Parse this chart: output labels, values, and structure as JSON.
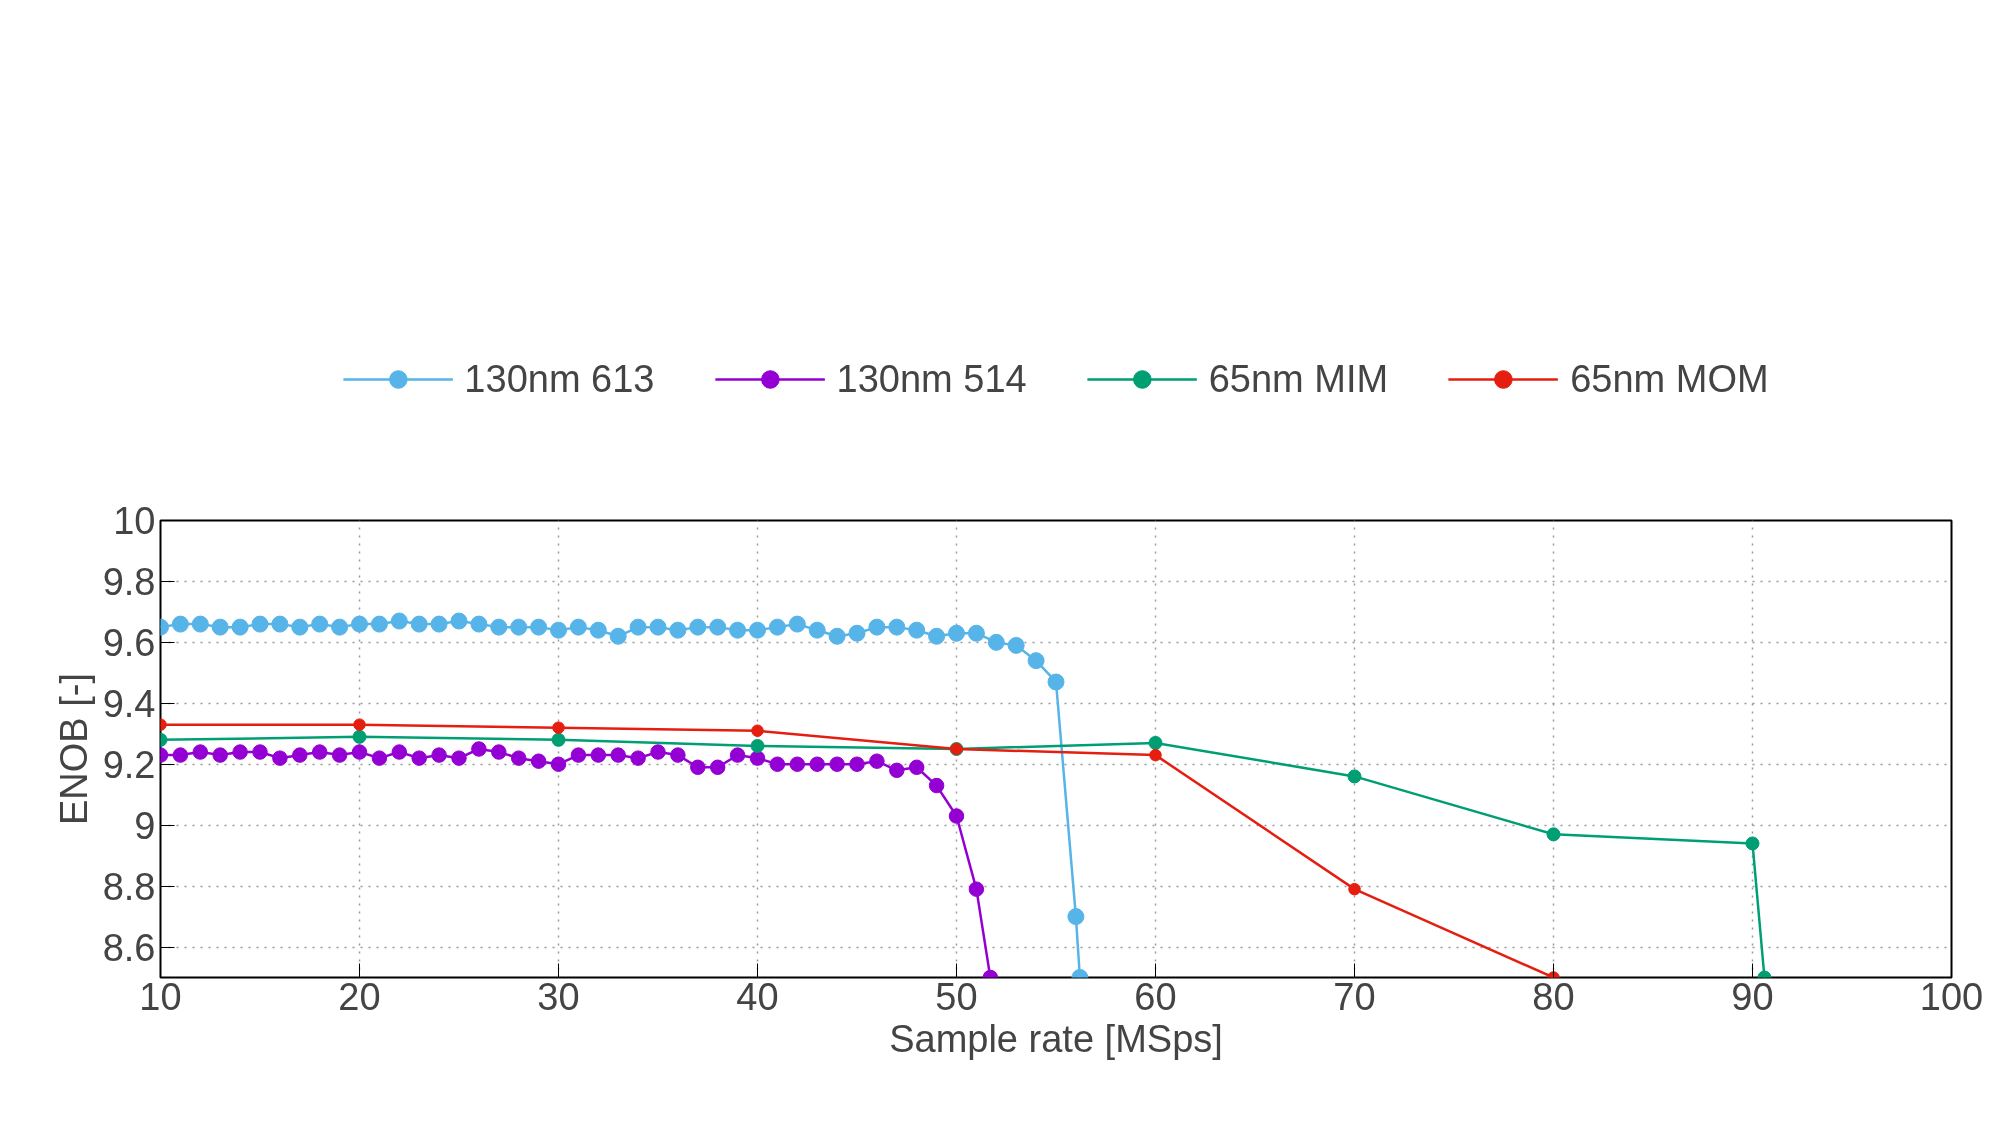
{
  "chart_data": {
    "type": "line",
    "xlabel": "Sample rate [MSps]",
    "ylabel": "ENOB [-]",
    "xlim": [
      10,
      100
    ],
    "xticks": [
      10,
      20,
      30,
      40,
      50,
      60,
      70,
      80,
      90,
      100
    ],
    "ylim": [
      8.5,
      10
    ],
    "yticks": [
      8.6,
      8.8,
      9,
      9.2,
      9.4,
      9.6,
      9.8,
      10
    ],
    "grid": true,
    "legend": "top",
    "marker": "circle",
    "line_style": "solid",
    "series": [
      {
        "name": "130nm 613",
        "color": "#56b4e9",
        "x": [
          10,
          11,
          12,
          13,
          14,
          15,
          16,
          17,
          18,
          19,
          20,
          21,
          22,
          23,
          24,
          25,
          26,
          27,
          28,
          29,
          30,
          31,
          32,
          33,
          34,
          35,
          36,
          37,
          38,
          39,
          40,
          41,
          42,
          43,
          44,
          45,
          46,
          47,
          48,
          49,
          50,
          51,
          52,
          53,
          54,
          55,
          56,
          56.2
        ],
        "values": [
          9.65,
          9.66,
          9.66,
          9.65,
          9.65,
          9.66,
          9.66,
          9.65,
          9.66,
          9.65,
          9.66,
          9.66,
          9.67,
          9.66,
          9.66,
          9.67,
          9.66,
          9.65,
          9.65,
          9.65,
          9.64,
          9.65,
          9.64,
          9.62,
          9.65,
          9.65,
          9.64,
          9.65,
          9.65,
          9.64,
          9.64,
          9.65,
          9.66,
          9.64,
          9.62,
          9.63,
          9.65,
          9.65,
          9.64,
          9.62,
          9.63,
          9.63,
          9.6,
          9.59,
          9.54,
          9.47,
          8.7,
          8.5
        ]
      },
      {
        "name": "130nm 514",
        "color": "#9400d3",
        "x": [
          10,
          11,
          12,
          13,
          14,
          15,
          16,
          17,
          18,
          19,
          20,
          21,
          22,
          23,
          24,
          25,
          26,
          27,
          28,
          29,
          30,
          31,
          32,
          33,
          34,
          35,
          36,
          37,
          38,
          39,
          40,
          41,
          42,
          43,
          44,
          45,
          46,
          47,
          48,
          49,
          50,
          51,
          51.7
        ],
        "values": [
          9.23,
          9.23,
          9.24,
          9.23,
          9.24,
          9.24,
          9.22,
          9.23,
          9.24,
          9.23,
          9.24,
          9.22,
          9.24,
          9.22,
          9.23,
          9.22,
          9.25,
          9.24,
          9.22,
          9.21,
          9.2,
          9.23,
          9.23,
          9.23,
          9.22,
          9.24,
          9.23,
          9.19,
          9.19,
          9.23,
          9.22,
          9.2,
          9.2,
          9.2,
          9.2,
          9.2,
          9.21,
          9.18,
          9.19,
          9.13,
          9.03,
          8.79,
          8.5
        ]
      },
      {
        "name": "65nm MIM",
        "color": "#009e73",
        "x": [
          10,
          20,
          30,
          40,
          50,
          60,
          70,
          80,
          90,
          90.6
        ],
        "values": [
          9.28,
          9.29,
          9.28,
          9.26,
          9.25,
          9.27,
          9.16,
          8.97,
          8.94,
          8.5
        ]
      },
      {
        "name": "65nm MOM",
        "color": "#e51e10",
        "x": [
          10,
          20,
          30,
          40,
          50,
          60,
          70,
          80
        ],
        "values": [
          9.33,
          9.33,
          9.32,
          9.31,
          9.25,
          9.23,
          8.79,
          8.5
        ]
      }
    ]
  }
}
